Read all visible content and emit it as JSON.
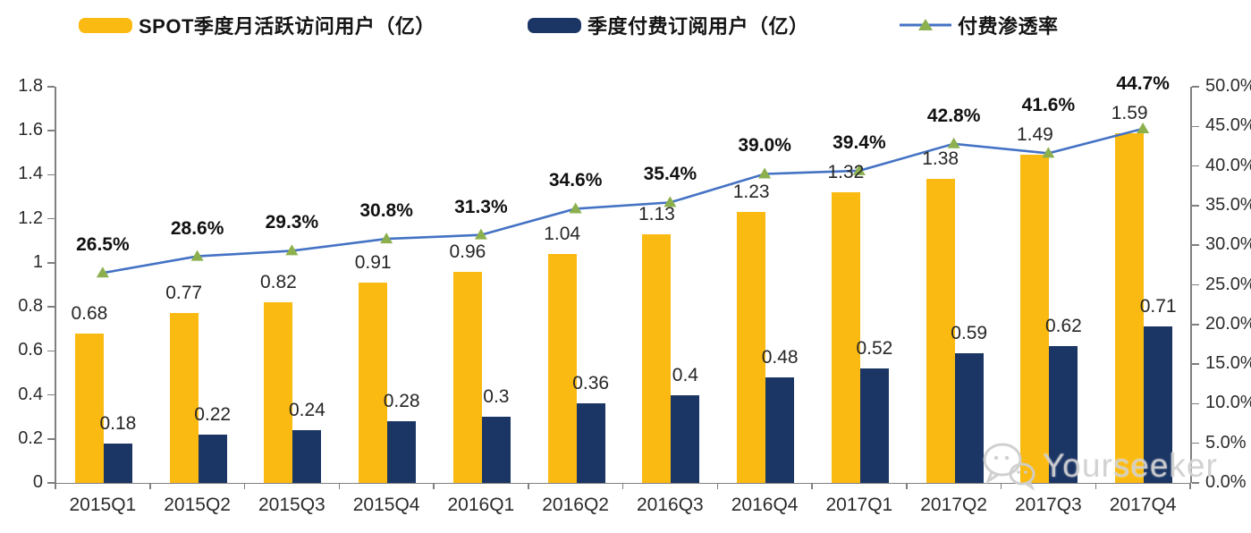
{
  "legend": {
    "items": [
      {
        "label": "SPOT季度月活跃访问用户（亿）",
        "swatch": "bar",
        "color": "#FBBA12"
      },
      {
        "label": "季度付费订阅用户（亿）",
        "swatch": "bar",
        "color": "#1B3564"
      },
      {
        "label": "付费渗透率",
        "swatch": "line",
        "line_color": "#4472C4",
        "marker_color": "#8CB04E"
      }
    ]
  },
  "chart_data": {
    "type": "bar",
    "subtype": "grouped-bars-with-line",
    "categories": [
      "2015Q1",
      "2015Q2",
      "2015Q3",
      "2015Q4",
      "2016Q1",
      "2016Q2",
      "2016Q3",
      "2016Q4",
      "2017Q1",
      "2017Q2",
      "2017Q3",
      "2017Q4"
    ],
    "series": [
      {
        "name": "SPOT季度月活跃访问用户（亿）",
        "type": "bar",
        "axis": "left",
        "color": "#FBBA12",
        "values": [
          0.68,
          0.77,
          0.82,
          0.91,
          0.96,
          1.04,
          1.13,
          1.23,
          1.32,
          1.38,
          1.49,
          1.59
        ],
        "labels": [
          "0.68",
          "0.77",
          "0.82",
          "0.91",
          "0.96",
          "1.04",
          "1.13",
          "1.23",
          "1.32",
          "1.38",
          "1.49",
          "1.59"
        ]
      },
      {
        "name": "季度付费订阅用户（亿）",
        "type": "bar",
        "axis": "left",
        "color": "#1B3564",
        "values": [
          0.18,
          0.22,
          0.24,
          0.28,
          0.3,
          0.36,
          0.4,
          0.48,
          0.52,
          0.59,
          0.62,
          0.71
        ],
        "labels": [
          "0.18",
          "0.22",
          "0.24",
          "0.28",
          "0.3",
          "0.36",
          "0.4",
          "0.48",
          "0.52",
          "0.59",
          "0.62",
          "0.71"
        ]
      },
      {
        "name": "付费渗透率",
        "type": "line",
        "axis": "right",
        "color": "#4472C4",
        "marker": "triangle",
        "marker_color": "#8CB04E",
        "values": [
          26.5,
          28.6,
          29.3,
          30.8,
          31.3,
          34.6,
          35.4,
          39.0,
          39.4,
          42.8,
          41.6,
          44.7
        ],
        "labels": [
          "26.5%",
          "28.6%",
          "29.3%",
          "30.8%",
          "31.3%",
          "34.6%",
          "35.4%",
          "39.0%",
          "39.4%",
          "42.8%",
          "41.6%",
          "44.7%"
        ]
      }
    ],
    "left_axis": {
      "min": 0,
      "max": 1.8,
      "tick_step": 0.2,
      "tick_labels": [
        "0",
        "0.2",
        "0.4",
        "0.6",
        "0.8",
        "1",
        "1.2",
        "1.4",
        "1.6",
        "1.8"
      ]
    },
    "right_axis": {
      "min": 0,
      "max": 50,
      "tick_step": 5,
      "tick_labels": [
        "0.0%",
        "5.0%",
        "10.0%",
        "15.0%",
        "20.0%",
        "25.0%",
        "30.0%",
        "35.0%",
        "40.0%",
        "45.0%",
        "50.0%"
      ]
    },
    "grid": false,
    "legend_position": "top"
  },
  "watermark": {
    "text": "Yourseeker",
    "icon": "wechat-icon",
    "color": "#CECECE"
  }
}
